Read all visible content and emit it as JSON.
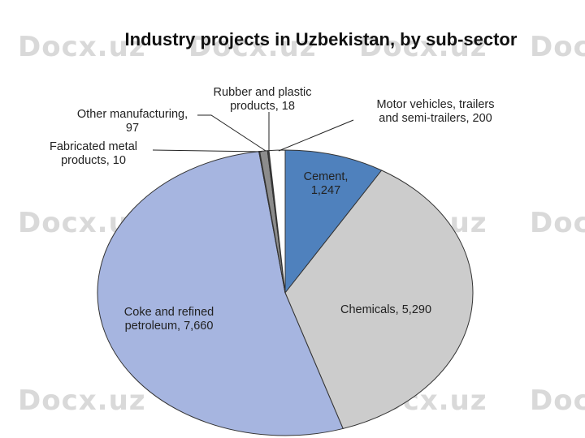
{
  "watermark": "Docx.uz",
  "chart_data": {
    "type": "pie",
    "title": "Industry projects in Uzbekistan, by sub-sector",
    "slices": [
      {
        "label_lines": [
          "Cement,",
          "1,247"
        ],
        "value": 1247,
        "color": "#4f81bd",
        "label_color": "#ffffff"
      },
      {
        "label_lines": [
          "Chemicals,  5,290"
        ],
        "value": 5290,
        "color": "#cccccc",
        "label_color": "#222222"
      },
      {
        "label_lines": [
          "Coke and refined",
          "petroleum,  7,660"
        ],
        "value": 7660,
        "color": "#a6b5e0",
        "label_color": "#222222"
      },
      {
        "label_lines": [
          "Fabricated metal",
          "products,  10"
        ],
        "value": 10,
        "color": "#8ea9db",
        "label_color": "#222222"
      },
      {
        "label_lines": [
          "Other manufacturing,",
          "97"
        ],
        "value": 97,
        "color": "#8c8c8c",
        "label_color": "#222222"
      },
      {
        "label_lines": [
          "Rubber and plastic",
          "products,  18"
        ],
        "value": 18,
        "color": "#3a3a3a",
        "label_color": "#222222"
      },
      {
        "label_lines": [
          "Motor vehicles, trailers",
          "and semi-trailers,  200"
        ],
        "value": 200,
        "color": "#ffffff",
        "label_color": "#222222"
      }
    ],
    "start": "12 o'clock",
    "direction": "clockwise",
    "legend": "none"
  }
}
